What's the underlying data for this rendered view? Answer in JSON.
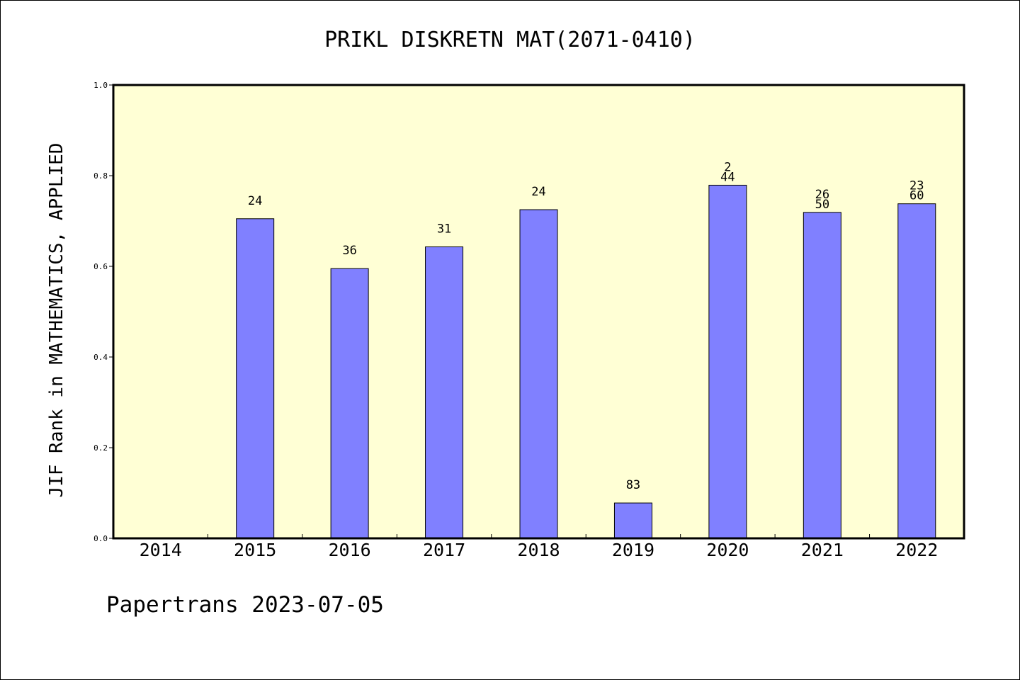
{
  "chart_data": {
    "type": "bar",
    "title": "PRIKL DISKRETN MAT(2071-0410)",
    "xlabel": "",
    "ylabel": "JIF Rank in MATHEMATICS, APPLIED",
    "categories": [
      "2014",
      "2015",
      "2016",
      "2017",
      "2018",
      "2019",
      "2020",
      "2021",
      "2022"
    ],
    "values": [
      null,
      0.705,
      0.595,
      0.643,
      0.725,
      0.078,
      0.779,
      0.719,
      0.738
    ],
    "bar_labels": [
      [],
      [
        "24"
      ],
      [
        "36"
      ],
      [
        "31"
      ],
      [
        "24"
      ],
      [
        "83"
      ],
      [
        "2",
        "44"
      ],
      [
        "26",
        "50"
      ],
      [
        "23",
        "60"
      ]
    ],
    "ylim": [
      0,
      1.0
    ],
    "yticks": [
      "0.0",
      "0.2",
      "0.4",
      "0.6",
      "0.8",
      "1.0"
    ],
    "grid": false,
    "legend": "none",
    "colors": {
      "plot_background": "#ffffd5",
      "bar_fill": "#8080ff",
      "bar_stroke": "#000000"
    }
  },
  "footer": {
    "source_text": "Papertrans 2023-07-05"
  }
}
